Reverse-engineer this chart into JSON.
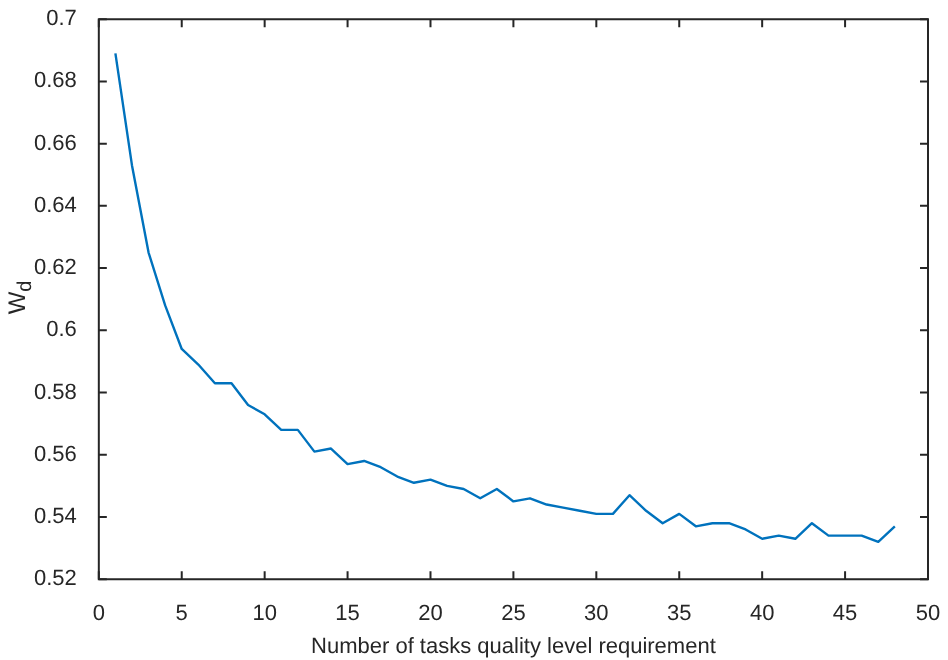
{
  "chart_data": {
    "type": "line",
    "xlabel": "Number of tasks quality level requirement",
    "ylabel": "W$_{d}$",
    "x": [
      1,
      2,
      3,
      4,
      5,
      6,
      7,
      8,
      9,
      10,
      11,
      12,
      13,
      14,
      15,
      16,
      17,
      18,
      19,
      20,
      21,
      22,
      23,
      24,
      25,
      26,
      27,
      28,
      29,
      30,
      31,
      32,
      33,
      34,
      35,
      36,
      37,
      38,
      39,
      40,
      41,
      42,
      43,
      44,
      45,
      46,
      47,
      48
    ],
    "series": [
      {
        "color": "#0072bd",
        "values": [
          0.689,
          0.653,
          0.625,
          0.608,
          0.594,
          0.589,
          0.583,
          0.583,
          0.576,
          0.573,
          0.568,
          0.568,
          0.561,
          0.562,
          0.557,
          0.558,
          0.556,
          0.553,
          0.551,
          0.552,
          0.55,
          0.549,
          0.546,
          0.549,
          0.545,
          0.546,
          0.544,
          0.543,
          0.542,
          0.541,
          0.541,
          0.547,
          0.542,
          0.538,
          0.541,
          0.537,
          0.538,
          0.538,
          0.536,
          0.533,
          0.534,
          0.533,
          0.538,
          0.534,
          0.534,
          0.534,
          0.532,
          0.537
        ]
      }
    ],
    "xlim": [
      0,
      50
    ],
    "xticks": [
      0,
      5,
      10,
      15,
      20,
      25,
      30,
      35,
      40,
      45,
      50
    ],
    "ylim": [
      0.52,
      0.7
    ],
    "yticks": [
      0.52,
      0.54,
      0.56,
      0.58,
      0.6,
      0.62,
      0.64,
      0.66,
      0.68,
      0.7
    ]
  }
}
